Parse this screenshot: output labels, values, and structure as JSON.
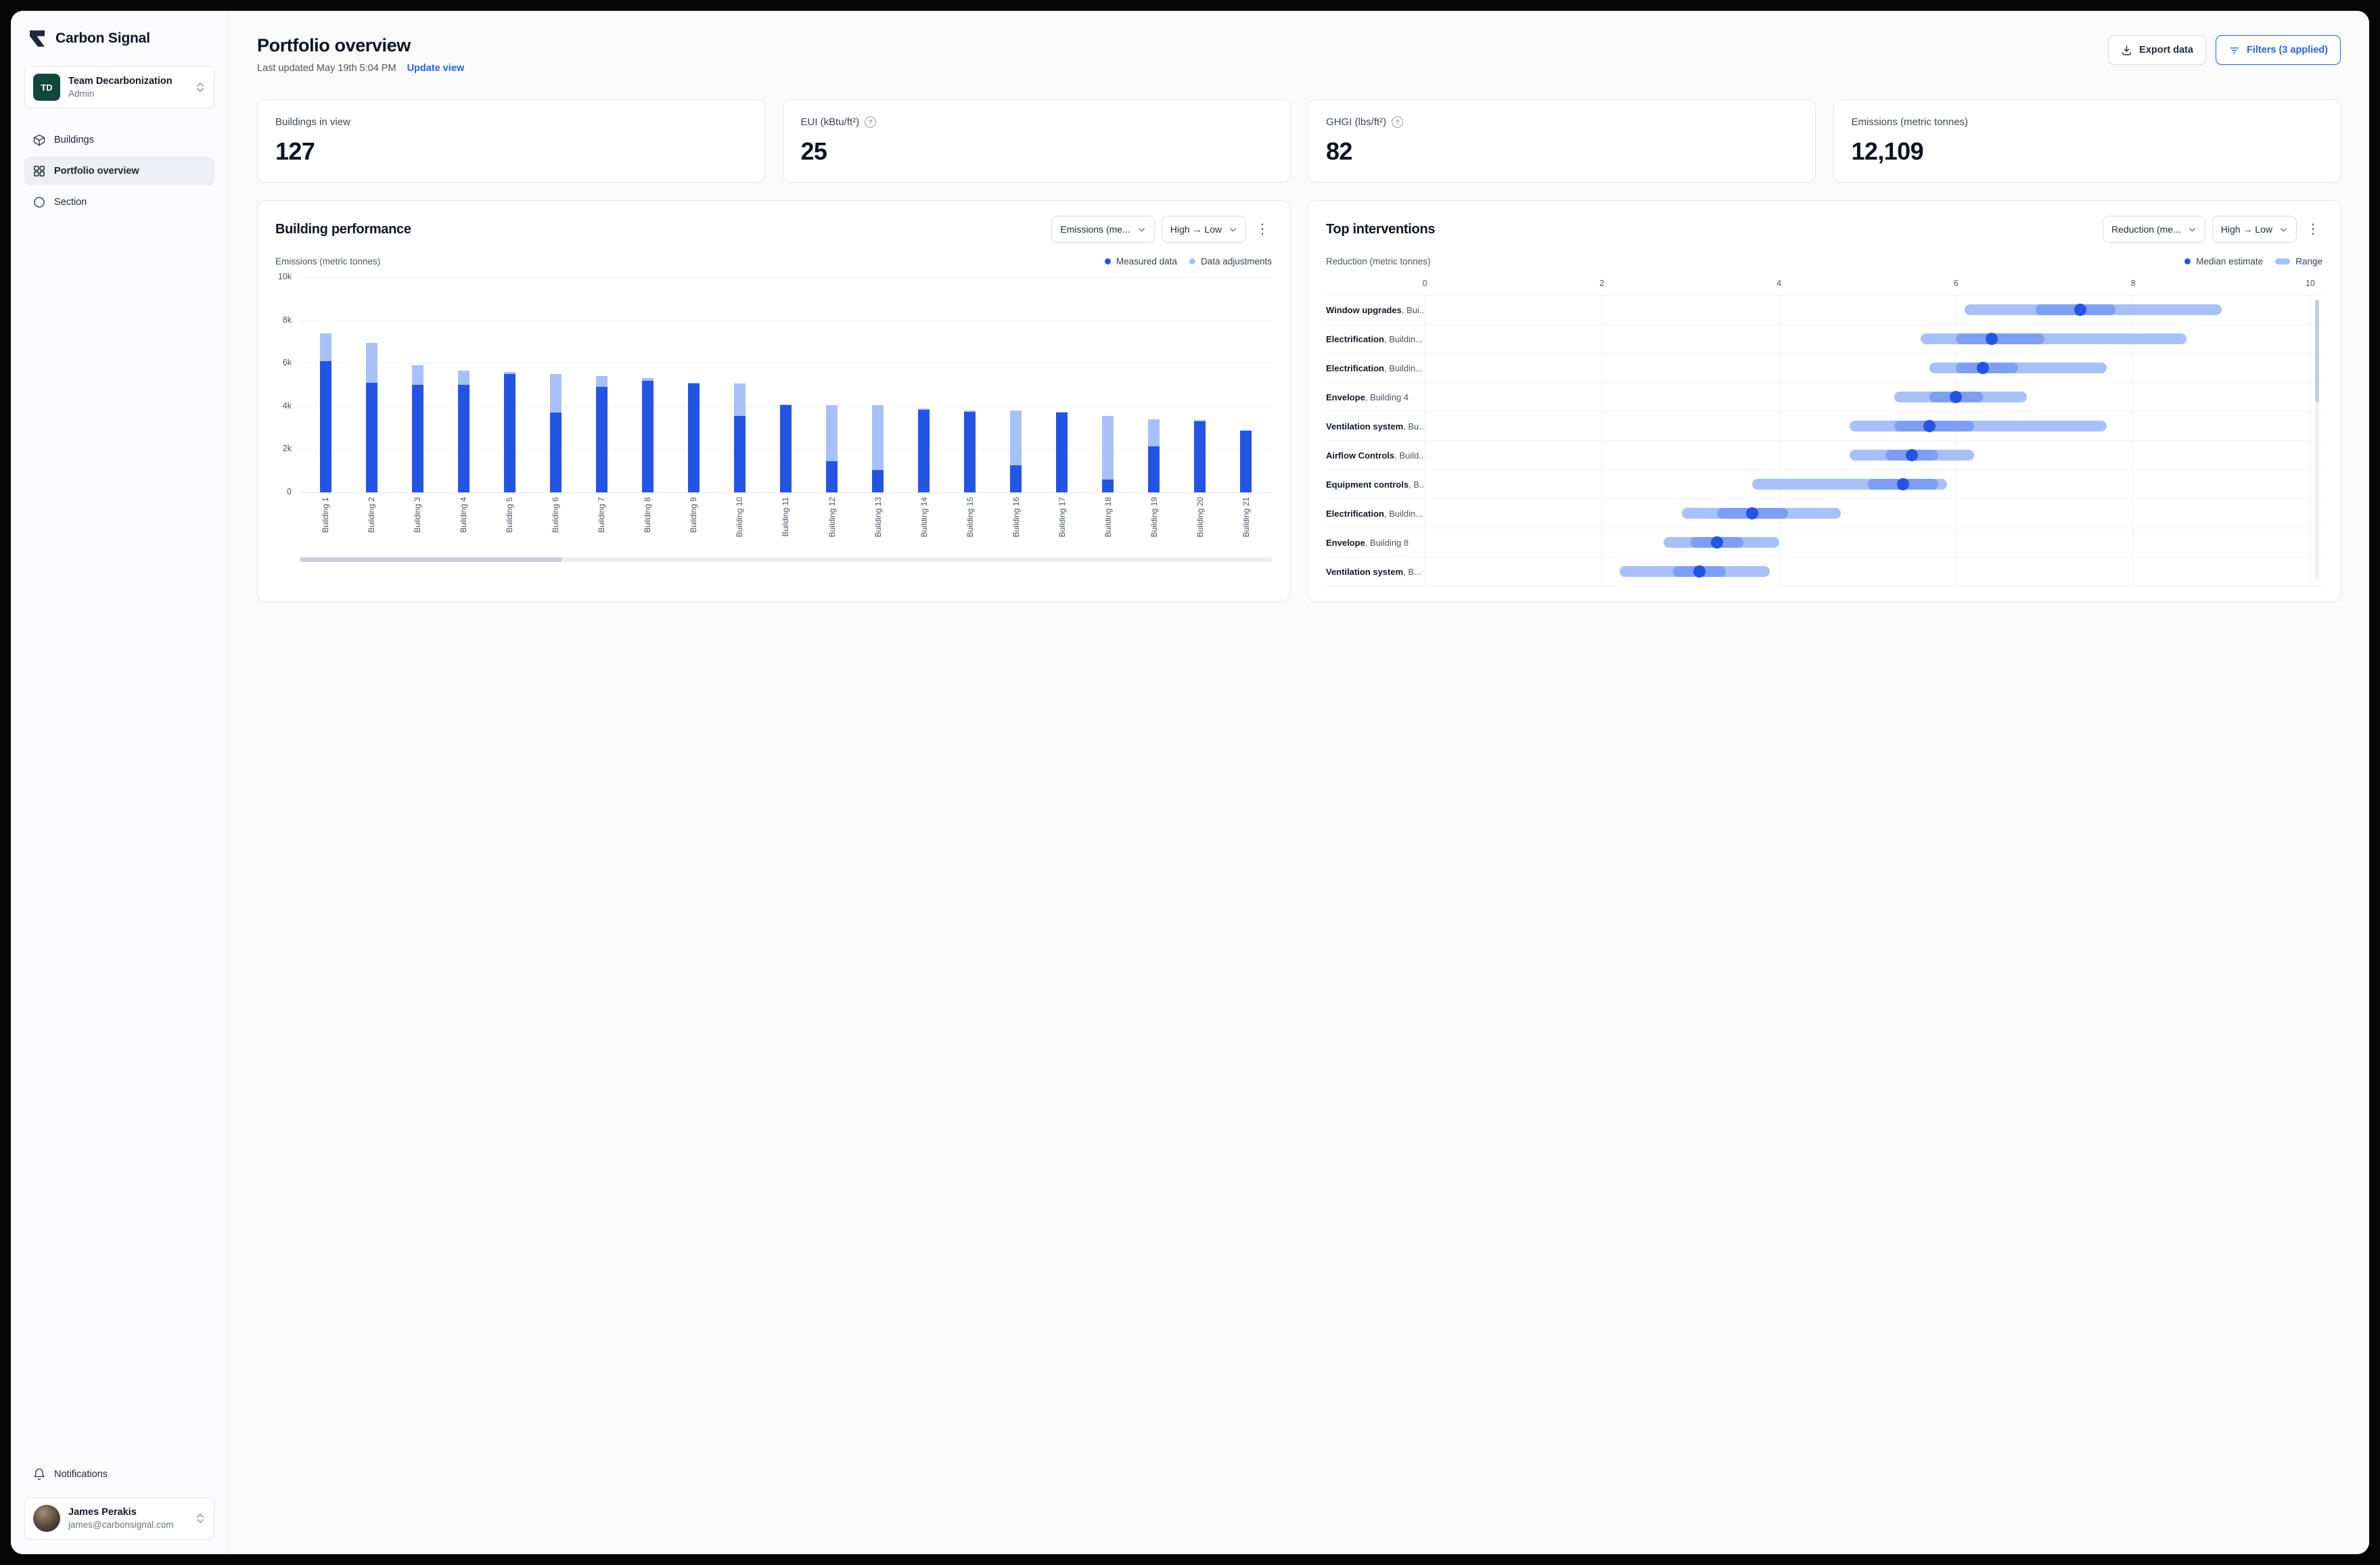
{
  "app": {
    "name": "Carbon Signal"
  },
  "colors": {
    "accent": "#2563eb",
    "measured": "#2454e4",
    "adjustment": "#a7c1f8",
    "range": "#a7c1f8",
    "range_inner": "#7d9ff3",
    "median": "#2454e4"
  },
  "sidebar": {
    "team": {
      "initials": "TD",
      "name": "Team Decarbonization",
      "role": "Admin"
    },
    "items": [
      {
        "label": "Buildings"
      },
      {
        "label": "Portfolio overview"
      },
      {
        "label": "Section"
      }
    ],
    "notifications_label": "Notifications",
    "user": {
      "name": "James Perakis",
      "email": "james@carbonsignal.com"
    }
  },
  "header": {
    "title": "Portfolio overview",
    "last_updated": "Last updated May 19th 5:04 PM",
    "update_view": "Update view",
    "export_label": "Export data",
    "filters_label": "Filters (3 applied)"
  },
  "stats": [
    {
      "label": "Buildings in view",
      "value": "127"
    },
    {
      "label": "EUI (kBtu/ft²)",
      "value": "25"
    },
    {
      "label": "GHGI (lbs/ft²)",
      "value": "82"
    },
    {
      "label": "Emissions (metric tonnes)",
      "value": "12,109"
    }
  ],
  "charts": {
    "performance": {
      "title": "Building performance",
      "metric_dropdown": "Emissions (me...",
      "sort_dropdown": "High → Low",
      "axis_label": "Emissions (metric tonnes)",
      "legend": [
        "Measured data",
        "Data adjustments"
      ]
    },
    "interventions": {
      "title": "Top interventions",
      "metric_dropdown": "Reduction (me...",
      "sort_dropdown": "High → Low",
      "axis_label": "Reduction (metric tonnes)",
      "legend": [
        "Median estimate",
        "Range"
      ]
    }
  },
  "chart_data": [
    {
      "type": "bar",
      "stacked": true,
      "title": "Building performance",
      "ylabel": "Emissions (metric tonnes)",
      "ymax": 10000,
      "yticks": [
        {
          "v": 10000,
          "label": "10k"
        },
        {
          "v": 8000,
          "label": "8k"
        },
        {
          "v": 6000,
          "label": "6k"
        },
        {
          "v": 4000,
          "label": "4k"
        },
        {
          "v": 2000,
          "label": "2k"
        },
        {
          "v": 0,
          "label": "0"
        }
      ],
      "categories": [
        "Building 1",
        "Building 2",
        "Building 3",
        "Building 4",
        "Building 5",
        "Building 6",
        "Building 7",
        "Building 8",
        "Building 9",
        "Building 10",
        "Building 11",
        "Building 12",
        "Building 13",
        "Building 14",
        "Building 15",
        "Building 16",
        "Building 17",
        "Building 18",
        "Building 19",
        "Building 20",
        "Building 21"
      ],
      "series": [
        {
          "name": "Measured data",
          "values": [
            6100,
            5100,
            5000,
            5000,
            5500,
            3700,
            4900,
            5200,
            5050,
            3550,
            4050,
            1450,
            1050,
            3850,
            3750,
            1250,
            3700,
            600,
            2150,
            3300,
            2850
          ]
        },
        {
          "name": "Data adjustments",
          "values": [
            1300,
            1850,
            900,
            650,
            100,
            1800,
            500,
            100,
            50,
            1500,
            50,
            2600,
            3000,
            50,
            50,
            2550,
            50,
            2950,
            1250,
            50,
            50
          ]
        }
      ]
    },
    {
      "type": "range-dot",
      "title": "Top interventions",
      "xlabel": "Reduction (metric tonnes)",
      "xlim": [
        0,
        10
      ],
      "xticks": [
        0,
        2,
        4,
        6,
        8,
        10
      ],
      "legend": [
        "Median estimate",
        "Range"
      ],
      "rows": [
        {
          "name": "Window upgrades",
          "target": "Bui...",
          "range": [
            6.1,
            9.0
          ],
          "inner": [
            6.9,
            7.8
          ],
          "median": 7.4
        },
        {
          "name": "Electrification",
          "target": "Buildin...",
          "range": [
            5.6,
            8.6
          ],
          "inner": [
            6.0,
            7.0
          ],
          "median": 6.4
        },
        {
          "name": "Electrification",
          "target": "Buildin...",
          "range": [
            5.7,
            7.7
          ],
          "inner": [
            6.0,
            6.7
          ],
          "median": 6.3
        },
        {
          "name": "Envelope",
          "target": "Building 4",
          "range": [
            5.3,
            6.8
          ],
          "inner": [
            5.7,
            6.3
          ],
          "median": 6.0
        },
        {
          "name": "Ventilation system",
          "target": "Bu...",
          "range": [
            4.8,
            7.7
          ],
          "inner": [
            5.3,
            6.2
          ],
          "median": 5.7
        },
        {
          "name": "Airflow Controls",
          "target": "Build...",
          "range": [
            4.8,
            6.2
          ],
          "inner": [
            5.2,
            5.8
          ],
          "median": 5.5
        },
        {
          "name": "Equipment controls",
          "target": "B...",
          "range": [
            3.7,
            5.9
          ],
          "inner": [
            5.0,
            5.8
          ],
          "median": 5.4
        },
        {
          "name": "Electrification",
          "target": "Buildin...",
          "range": [
            2.9,
            4.7
          ],
          "inner": [
            3.3,
            4.1
          ],
          "median": 3.7
        },
        {
          "name": "Envelope",
          "target": "Building 8",
          "range": [
            2.7,
            4.0
          ],
          "inner": [
            3.0,
            3.6
          ],
          "median": 3.3
        },
        {
          "name": "Ventilation system",
          "target": "B...",
          "range": [
            2.2,
            3.9
          ],
          "inner": [
            2.8,
            3.4
          ],
          "median": 3.1
        }
      ]
    }
  ]
}
